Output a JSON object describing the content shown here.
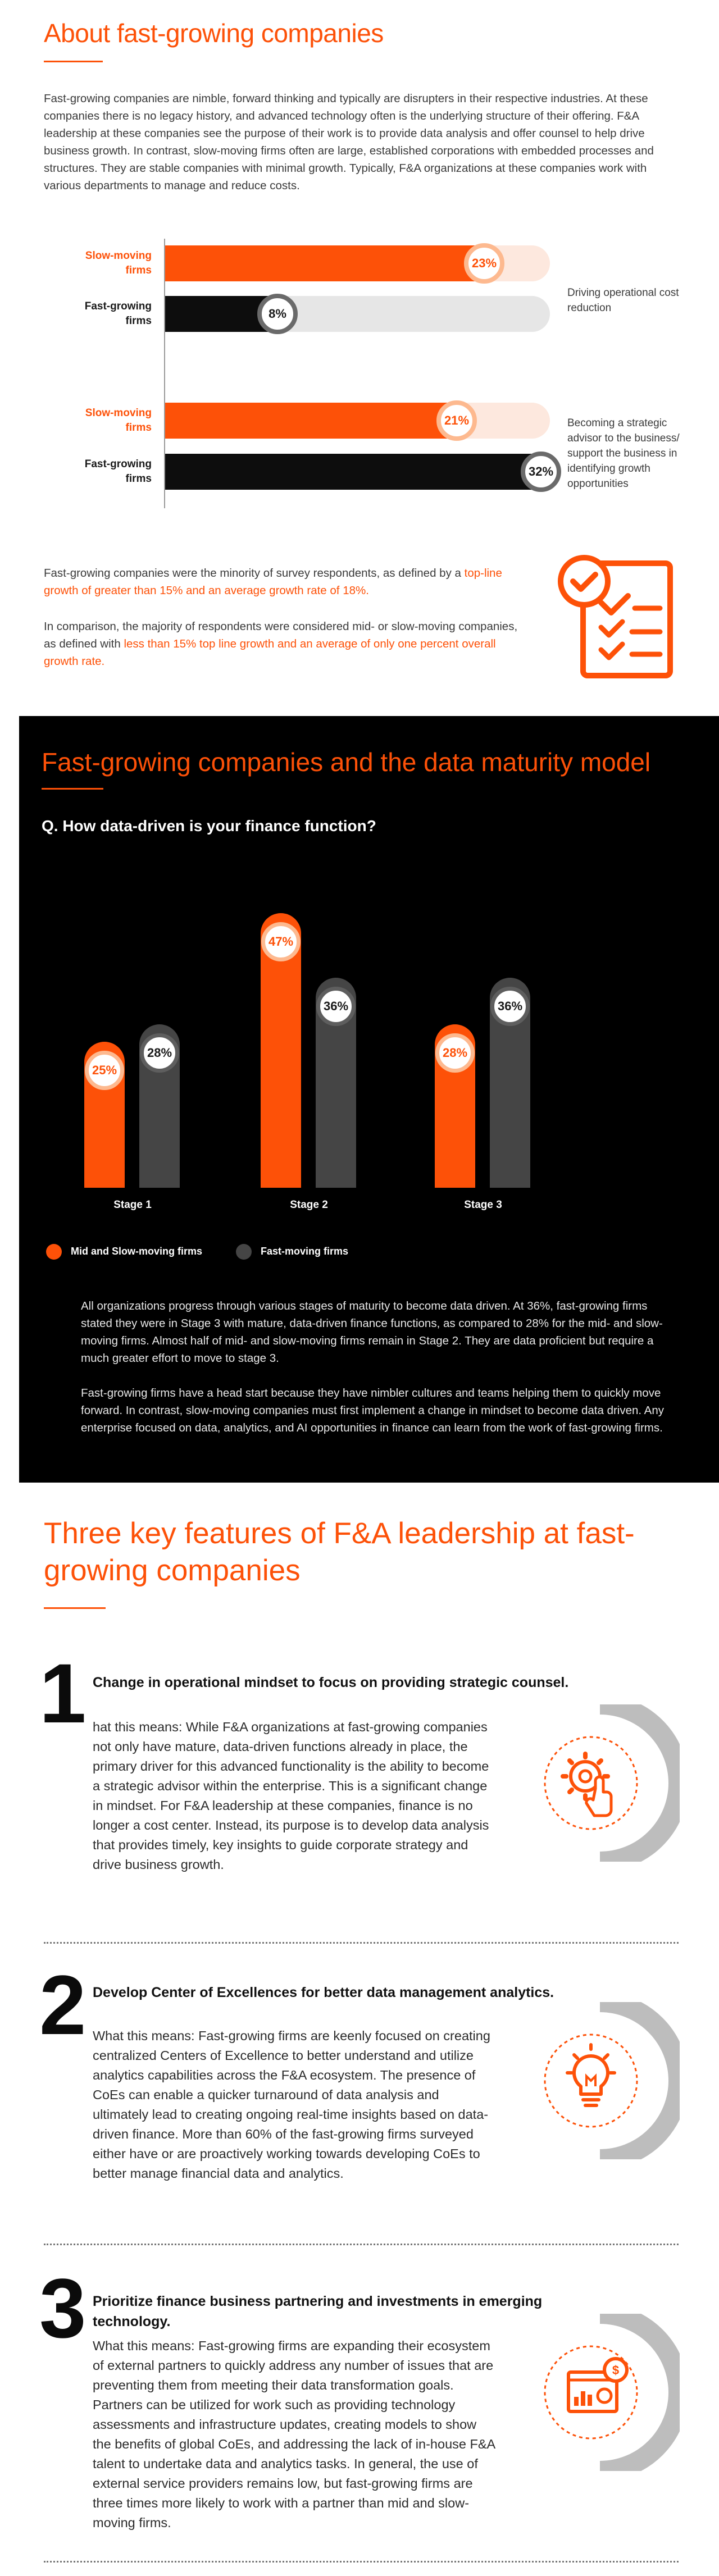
{
  "section1": {
    "title": "About fast-growing companies",
    "intro": "Fast-growing companies are nimble, forward thinking and typically are disrupters in their respective industries. At these companies there is no legacy history, and advanced technology often is the underlying structure of their offering. F&A leadership at these companies see the purpose of their work is to provide data analysis and offer counsel to help drive business growth. In contrast, slow-moving firms often are large, established corporations with embedded processes and structures. They are stable companies with minimal growth. Typically, F&A organizations at these companies work with various departments to manage and reduce costs.",
    "bars": [
      {
        "label_line1": "Slow-moving",
        "label_line2": "firms",
        "value": 23,
        "display": "23%",
        "kind": "slow"
      },
      {
        "label_line1": "Fast-growing",
        "label_line2": "firms",
        "value": 8,
        "display": "8%",
        "kind": "fast"
      },
      {
        "label_line1": "Slow-moving",
        "label_line2": "firms",
        "value": 21,
        "display": "21%",
        "kind": "slow"
      },
      {
        "label_line1": "Fast-growing",
        "label_line2": "firms",
        "value": 32,
        "display": "32%",
        "kind": "fast"
      }
    ],
    "group_notes": [
      "Driving operational cost reduction",
      "Becoming a strategic advisor to the business/ support the business in identifying growth opportunities"
    ],
    "stat1_prefix": "Fast-growing companies were the minority of survey respondents, as defined by a ",
    "stat1_highlight": "top-line growth of greater than 15% and an average growth rate of 18%.",
    "stat2_prefix": "In comparison, the majority of respondents were considered mid- or slow-moving companies, as defined with ",
    "stat2_highlight": "less than 15% top line growth and an average of only one percent overall growth rate.",
    "checklist_icon": "checklist-icon"
  },
  "section2": {
    "title": "Fast-growing companies and the data maturity model",
    "question": "Q. How data-driven is your finance function?",
    "legend": [
      "Mid and Slow-moving firms",
      "Fast-moving firms"
    ],
    "para1": "All organizations progress through various stages of maturity to become data driven. At 36%, fast-growing firms stated they were in Stage 3 with mature, data-driven finance functions, as compared to 28% for the mid- and slow-moving firms. Almost half of mid- and slow-moving firms remain in Stage 2. They are data proficient but require a much greater effort to move to stage 3.",
    "para2": "Fast-growing firms have a head start because they have nimbler cultures and teams helping them to quickly move forward. In contrast, slow-moving companies must first implement a change in mindset to become data driven. Any enterprise focused on data, analytics, and AI opportunities in finance can learn from the work of fast-growing firms."
  },
  "chart_data": {
    "type": "bar",
    "categories": [
      "Stage 1",
      "Stage 2",
      "Stage 3"
    ],
    "series": [
      {
        "name": "Mid and Slow-moving firms",
        "values": [
          25,
          47,
          28
        ],
        "labels": [
          "25%",
          "47%",
          "28%"
        ],
        "color": "#fd5108"
      },
      {
        "name": "Fast-moving firms",
        "values": [
          28,
          36,
          36
        ],
        "labels": [
          "28%",
          "36%",
          "36%"
        ],
        "color": "#454545"
      }
    ],
    "title": "Q. How data-driven is your finance function?",
    "xlabel": "",
    "ylabel": "",
    "ylim": [
      0,
      50
    ],
    "legend_position": "bottom-left",
    "grid": false
  },
  "section3": {
    "title": "Three key features of F&A leadership at fast-growing companies",
    "features": [
      {
        "number": "1",
        "title": "Change in operational mindset to focus on providing strategic counsel.",
        "body": "hat this means: While F&A organizations at fast-growing companies not only have mature, data-driven functions already in place, the primary driver for this advanced functionality is the ability to become a strategic advisor within the enterprise. This is a significant change in mindset. For F&A leadership at these companies, finance is no longer a cost center. Instead, its purpose is to develop data analysis that provides timely, key insights to guide corporate strategy and drive business growth.",
        "icon": "gear-hand-icon"
      },
      {
        "number": "2",
        "title": "Develop Center of Excellences for better data management analytics.",
        "body": "What this means: Fast-growing firms are keenly focused on creating centralized Centers of Excellence to better understand and utilize analytics capabilities across the F&A ecosystem. The presence of CoEs can enable a quicker turnaround of data analysis and ultimately lead to creating ongoing real-time insights based on data-driven finance. More than 60% of the fast-growing firms surveyed either have or are proactively working towards developing CoEs to better manage financial data and analytics.",
        "icon": "lightbulb-icon"
      },
      {
        "number": "3",
        "title": "Prioritize finance business partnering and investments in emerging technology.",
        "body": "What this means: Fast-growing firms are expanding their ecosystem of external partners to quickly address any number of issues that are preventing them from meeting their data transformation goals. Partners can be utilized for work such as providing technology assessments and infrastructure updates, creating models to show the benefits of global CoEs, and addressing the lack of in-house F&A talent to undertake data and analytics tasks. In general, the use of external service providers remains low, but fast-growing firms are three times more likely to work with a partner than mid and slow-moving firms.",
        "icon": "dashboard-dollar-icon"
      }
    ]
  }
}
